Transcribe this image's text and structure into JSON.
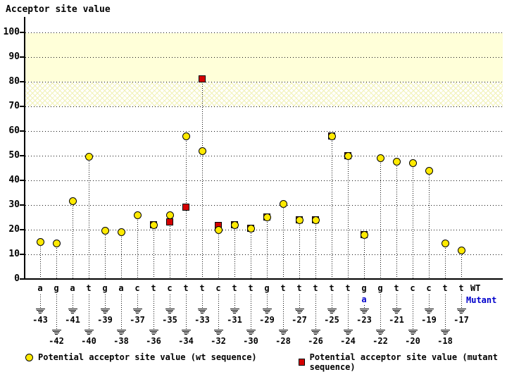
{
  "chart_data": {
    "type": "scatter",
    "title": "Acceptor site value",
    "ylabel": "Acceptor site value",
    "ylim": [
      0,
      107
    ],
    "y_ticks": [
      100,
      90,
      80,
      70,
      60,
      50,
      40,
      30,
      20,
      10,
      0
    ],
    "grid": "dotted horizontal",
    "highlight_bands": [
      {
        "from": 80,
        "to": 100,
        "style": "solid"
      },
      {
        "from": 70,
        "to": 80,
        "style": "hatch"
      }
    ],
    "x_positions": [
      -43,
      -42,
      -41,
      -40,
      -39,
      -38,
      -37,
      -36,
      -35,
      -34,
      -33,
      -32,
      -31,
      -30,
      -29,
      -28,
      -27,
      -26,
      -25,
      -24,
      -23,
      -22,
      -21,
      -20,
      -19,
      -18,
      -17
    ],
    "sequence_wt": [
      "a",
      "g",
      "a",
      "t",
      "g",
      "a",
      "c",
      "t",
      "c",
      "t",
      "t",
      "c",
      "t",
      "t",
      "g",
      "t",
      "t",
      "t",
      "t",
      "t",
      "g",
      "g",
      "t",
      "c",
      "c",
      "t",
      "t"
    ],
    "mutant_base": {
      "position": -23,
      "wt": "g",
      "mutant": "a"
    },
    "row_labels": {
      "wt": "WT",
      "mutant": "Mutant"
    },
    "series": [
      {
        "name": "Potential acceptor site value (wt sequence)",
        "marker": "circle",
        "color": "#ffea00",
        "values": [
          15,
          14.5,
          31.5,
          49.5,
          19.5,
          19,
          26,
          22,
          26,
          58,
          52,
          20,
          22,
          20.5,
          25,
          30.5,
          24,
          24,
          58,
          50,
          18,
          49,
          47.5,
          47,
          44,
          14.5,
          11.5
        ]
      },
      {
        "name": "Potential acceptor site value (mutant sequence)",
        "marker": "square",
        "color": "#d40000",
        "values": [
          null,
          null,
          null,
          null,
          null,
          null,
          null,
          22,
          23,
          29,
          81,
          21.5,
          22,
          20.5,
          25,
          null,
          24,
          24,
          58,
          50,
          18,
          null,
          null,
          null,
          null,
          null,
          null
        ]
      }
    ],
    "legend_position": "bottom"
  }
}
